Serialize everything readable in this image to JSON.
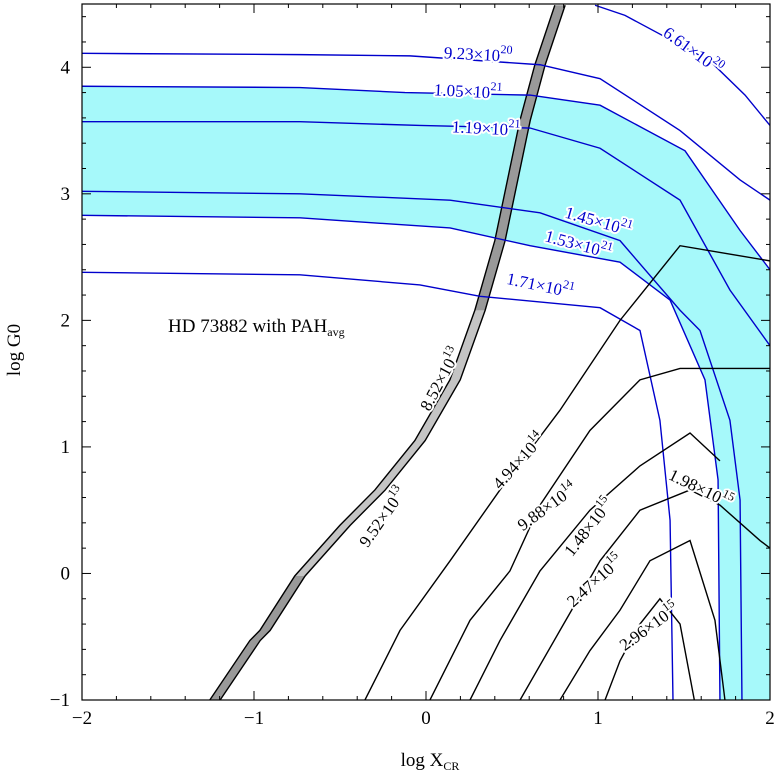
{
  "chart_data": {
    "type": "contour",
    "xlabel": [
      "log X",
      "CR"
    ],
    "ylabel": "log G0",
    "annotation": [
      "HD 73882 with PAH",
      "avg"
    ],
    "xlim": [
      -2,
      2
    ],
    "ylim": [
      -1,
      4.5
    ],
    "xticks": [
      {
        "value": -2,
        "label": "−2"
      },
      {
        "value": -1,
        "label": "−1"
      },
      0,
      1,
      2
    ],
    "yticks": [
      {
        "value": -1,
        "label": "−1"
      },
      0,
      1,
      2,
      3,
      4
    ],
    "xticks_minor": [
      -1.8,
      -1.6,
      -1.4,
      -1.2,
      -0.8,
      -0.6,
      -0.4,
      -0.2,
      0.2,
      0.4,
      0.6,
      0.8,
      1.2,
      1.4,
      1.6,
      1.8
    ],
    "yticks_minor": [
      -0.8,
      -0.6,
      -0.4,
      -0.2,
      0.2,
      0.4,
      0.6,
      0.8,
      1.2,
      1.4,
      1.6,
      1.8,
      2.2,
      2.4,
      2.6,
      2.8,
      3.2,
      3.4,
      3.6,
      3.8,
      4.2,
      4.4
    ],
    "shade_color": "#a6f9fa",
    "band_color": "#999999",
    "band_highlight_color": "#c4c4c4",
    "contours": [
      {
        "level": 9.23e+20,
        "label": [
          "9.23×10",
          "20"
        ],
        "color": "#0000cc",
        "x": [
          -2,
          -0.733,
          -0.093,
          0.663,
          1.012,
          1.477,
          1.826,
          2.0
        ],
        "y": [
          4.11,
          4.1,
          4.09,
          4.02,
          3.91,
          3.5,
          3.11,
          2.95
        ]
      },
      {
        "level": 1.05e+21,
        "label": [
          "1.05×10",
          "21"
        ],
        "color": "#0000cc",
        "x": [
          -2,
          -0.733,
          -0.122,
          0.605,
          1.012,
          1.506,
          1.826,
          2.0
        ],
        "y": [
          3.85,
          3.84,
          3.8,
          3.78,
          3.7,
          3.34,
          2.71,
          2.4
        ]
      },
      {
        "level": 1.19e+21,
        "label": [
          "1.19×10",
          "21"
        ],
        "color": "#0000cc",
        "x": [
          -2,
          -0.733,
          -0.035,
          0.605,
          1.012,
          1.477,
          1.767,
          2.0
        ],
        "y": [
          3.57,
          3.57,
          3.54,
          3.52,
          3.36,
          2.95,
          2.24,
          1.8
        ]
      },
      {
        "level": 1.45e+21,
        "label": [
          "1.45×10",
          "21"
        ],
        "color": "#0000cc",
        "x": [
          -2,
          -0.733,
          0.14,
          0.663,
          1.128,
          1.477,
          1.593,
          1.767,
          1.826,
          1.837
        ],
        "y": [
          3.02,
          3.0,
          2.95,
          2.85,
          2.63,
          2.08,
          1.92,
          1.21,
          0.58,
          -1.0
        ]
      },
      {
        "level": 1.53e+21,
        "label": [
          "1.53×10",
          "21"
        ],
        "color": "#0000cc",
        "x": [
          -2,
          -0.733,
          0.14,
          0.605,
          1.128,
          1.419,
          1.622,
          1.698,
          1.709
        ],
        "y": [
          2.83,
          2.81,
          2.73,
          2.59,
          2.46,
          2.16,
          1.53,
          0.74,
          -1.0
        ]
      },
      {
        "level": 1.71e+21,
        "label": [
          "1.71×10",
          "21"
        ],
        "color": "#0000cc",
        "x": [
          -2,
          -0.733,
          -0.035,
          0.314,
          1.012,
          1.244,
          1.36,
          1.419,
          1.436
        ],
        "y": [
          2.38,
          2.36,
          2.28,
          2.19,
          2.1,
          1.92,
          1.21,
          0.42,
          -1.0
        ]
      },
      {
        "level": 6.61e+20,
        "label": [
          "6.61×10",
          "20"
        ],
        "color": "#0000cc",
        "x": [
          0.983,
          1.157,
          1.651,
          1.855,
          2.0
        ],
        "y": [
          4.49,
          4.41,
          4.05,
          3.78,
          3.54
        ]
      },
      {
        "level": 494000000000000.0,
        "label": [
          "4.94×10",
          "14"
        ],
        "color": "#000000",
        "x": [
          -0.355,
          -0.151,
          0.14,
          0.43,
          0.779,
          1.128,
          1.477,
          2.0
        ],
        "y": [
          -1.0,
          -0.45,
          0.1,
          0.66,
          1.29,
          2.0,
          2.59,
          2.47
        ]
      },
      {
        "level": 988000000000000.0,
        "label": [
          "9.88×10",
          "14"
        ],
        "color": "#000000",
        "x": [
          0.023,
          0.256,
          0.488,
          0.663,
          0.953,
          1.244,
          1.477,
          2.0
        ],
        "y": [
          -1.0,
          -0.37,
          0.02,
          0.54,
          1.13,
          1.53,
          1.62,
          1.62
        ]
      },
      {
        "level": 1480000000000000.0,
        "label": [
          "1.48×10",
          "15"
        ],
        "color": "#000000",
        "x": [
          0.256,
          0.43,
          0.663,
          0.953,
          1.244,
          1.535,
          1.709
        ],
        "y": [
          -1.0,
          -0.53,
          0.02,
          0.5,
          0.85,
          1.11,
          0.89
        ]
      },
      {
        "level": 1980000000000000.0,
        "label": [
          "1.98×10",
          "15"
        ],
        "color": "#000000",
        "x": [
          0.547,
          0.779,
          1.012,
          1.244,
          1.535,
          1.709,
          1.942,
          2.0
        ],
        "y": [
          -1.0,
          -0.45,
          0.1,
          0.5,
          0.66,
          0.54,
          0.26,
          0.2
        ]
      },
      {
        "level": 2470000000000000.0,
        "label": [
          "2.47×10",
          "15"
        ],
        "color": "#000000",
        "x": [
          0.779,
          0.953,
          1.128,
          1.302,
          1.535,
          1.68,
          1.738
        ],
        "y": [
          -1.0,
          -0.61,
          -0.29,
          0.1,
          0.26,
          -0.37,
          -1.0
        ]
      },
      {
        "level": 2960000000000000.0,
        "label": [
          "2.96×10",
          "15"
        ],
        "color": "#000000",
        "x": [
          1.041,
          1.128,
          1.244,
          1.36,
          1.477,
          1.56
        ],
        "y": [
          -1.0,
          -0.69,
          -0.4,
          -0.2,
          -0.4,
          -1.0
        ]
      }
    ],
    "band_contours": [
      {
        "level": 85200000000000.0,
        "label": [
          "8.52×10",
          "13"
        ],
        "color": "#000000",
        "x": [
          -1.197,
          -0.964,
          -0.906,
          -0.703,
          -0.441,
          -0.237,
          -0.005,
          0.199,
          0.344,
          0.46,
          0.606,
          0.693,
          0.809
        ],
        "y": [
          -1.0,
          -0.53,
          -0.45,
          -0.02,
          0.38,
          0.66,
          1.05,
          1.53,
          2.08,
          2.63,
          3.58,
          4.02,
          4.49
        ]
      },
      {
        "level": 95200000000000.0,
        "label": [
          "9.52×10",
          "13"
        ],
        "color": "#000000",
        "x": [
          -1.257,
          -1.024,
          -0.966,
          -0.763,
          -0.501,
          -0.297,
          -0.065,
          0.139,
          0.284,
          0.4,
          0.546,
          0.633,
          0.749
        ],
        "y": [
          -1.0,
          -0.53,
          -0.45,
          -0.02,
          0.38,
          0.66,
          1.05,
          1.53,
          2.08,
          2.63,
          3.58,
          4.02,
          4.49
        ]
      }
    ]
  }
}
